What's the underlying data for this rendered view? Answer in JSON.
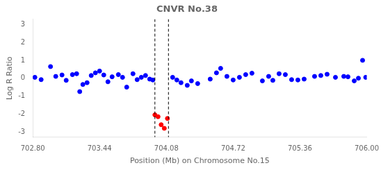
{
  "chart_data": {
    "type": "scatter",
    "title": "CNVR No.38",
    "xlabel": "Position (Mb) on Chromosome No.15",
    "ylabel": "Log R Ratio",
    "xlim": [
      702.8,
      706.0
    ],
    "ylim": [
      -3.3,
      3.3
    ],
    "xticks": [
      {
        "value": 702.8,
        "label": "702.80"
      },
      703.44,
      704.08,
      704.72,
      705.36,
      {
        "value": 706.0,
        "label": "706.00"
      }
    ],
    "yticks": [
      -3,
      -2,
      -1,
      0,
      1,
      2,
      3
    ],
    "grid": false,
    "series": [
      {
        "color": "blue",
        "marker": "circle",
        "x": [
          702.82,
          702.88,
          702.97,
          703.02,
          703.08,
          703.12,
          703.18,
          703.22,
          703.25,
          703.28,
          703.32,
          703.36,
          703.4,
          703.44,
          703.48,
          703.52,
          703.56,
          703.62,
          703.66,
          703.7,
          703.76,
          703.8,
          703.84,
          703.88,
          703.92,
          703.95,
          704.14,
          704.18,
          704.22,
          704.28,
          704.32,
          704.38,
          704.5,
          704.56,
          704.6,
          704.66,
          704.72,
          704.78,
          704.84,
          704.9,
          705.0,
          705.06,
          705.1,
          705.16,
          705.22,
          705.28,
          705.34,
          705.4,
          705.5,
          705.56,
          705.62,
          705.7,
          705.78,
          705.82,
          705.88,
          705.92,
          705.96,
          705.99
        ],
        "values": [
          0.05,
          -0.08,
          0.65,
          0.1,
          0.18,
          -0.12,
          0.2,
          0.25,
          -0.75,
          -0.35,
          -0.25,
          0.15,
          0.3,
          0.4,
          0.18,
          -0.2,
          0.08,
          0.2,
          0.05,
          -0.5,
          0.25,
          -0.08,
          0.05,
          0.15,
          -0.05,
          -0.1,
          0.05,
          -0.1,
          -0.25,
          -0.4,
          -0.15,
          -0.3,
          -0.05,
          0.3,
          0.55,
          0.1,
          -0.1,
          0.05,
          0.2,
          0.28,
          -0.15,
          0.1,
          -0.12,
          0.25,
          0.2,
          -0.08,
          -0.1,
          -0.05,
          0.1,
          0.15,
          0.22,
          0.05,
          0.1,
          0.08,
          -0.15,
          0.0,
          1.0,
          0.05
        ]
      },
      {
        "color": "red",
        "marker": "circle",
        "x": [
          703.97,
          704.0,
          704.03,
          704.06,
          704.09
        ],
        "values": [
          -2.05,
          -2.15,
          -2.6,
          -2.8,
          -2.25
        ]
      }
    ],
    "vlines": [
      {
        "x": 703.97,
        "color": "black",
        "line_style": "dashed"
      },
      {
        "x": 704.1,
        "color": "black",
        "line_style": "dashed"
      }
    ]
  }
}
